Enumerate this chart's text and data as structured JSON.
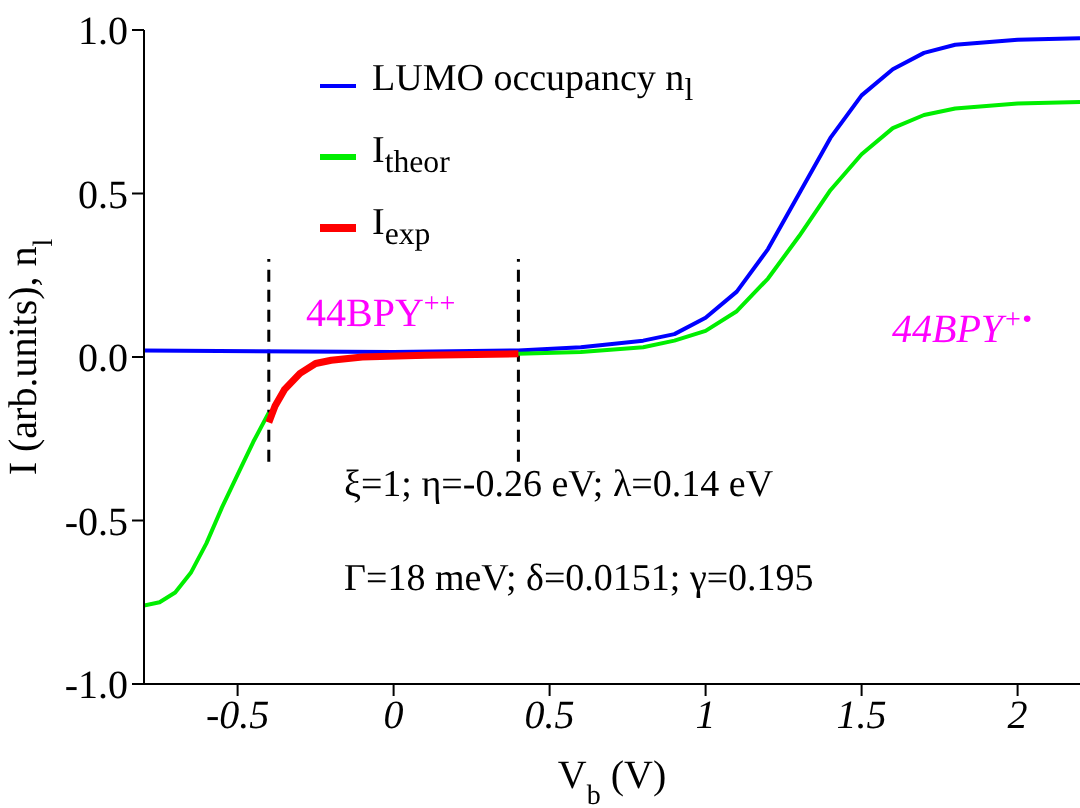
{
  "chart_data": {
    "type": "line",
    "xlabel": "V$_{b}$ (V)",
    "ylabel": "I (arb.units), n$_{l}$",
    "xlim": [
      -0.8,
      2.2
    ],
    "xticks": [
      -0.5,
      0,
      0.5,
      1,
      1.5,
      2
    ],
    "ylim": [
      -1.0,
      1.0
    ],
    "yticks": [
      {
        "value": -1.0,
        "label": "-1.0"
      },
      {
        "value": -0.5,
        "label": "-0.5"
      },
      {
        "value": 0,
        "label": "0.0"
      },
      {
        "value": 0.5,
        "label": "0.5"
      },
      {
        "value": 1.0,
        "label": "1.0"
      }
    ],
    "grid": false,
    "legend": "top left",
    "marker": "none",
    "series": [
      {
        "name": "LUMO occupancy n$_{l}$",
        "color": "#0000ff",
        "x": [
          -0.8,
          0,
          0.4,
          0.6,
          0.8,
          0.9,
          1.0,
          1.1,
          1.2,
          1.3,
          1.4,
          1.5,
          1.6,
          1.7,
          1.8,
          2.0,
          2.2
        ],
        "values": [
          0.02,
          0.015,
          0.02,
          0.03,
          0.05,
          0.07,
          0.12,
          0.2,
          0.33,
          0.5,
          0.67,
          0.8,
          0.88,
          0.93,
          0.955,
          0.97,
          0.975
        ]
      },
      {
        "name": "I$_{theor}$",
        "color": "#00ee00",
        "x": [
          -0.8,
          -0.75,
          -0.7,
          -0.65,
          -0.6,
          -0.55,
          -0.5,
          -0.45,
          -0.4,
          -0.35,
          -0.3,
          -0.2,
          0,
          0.4,
          0.6,
          0.8,
          0.9,
          1.0,
          1.1,
          1.2,
          1.3,
          1.4,
          1.5,
          1.6,
          1.7,
          1.8,
          2.0,
          2.2
        ],
        "values": [
          -0.76,
          -0.75,
          -0.72,
          -0.66,
          -0.57,
          -0.46,
          -0.36,
          -0.26,
          -0.17,
          null,
          null,
          null,
          0,
          0.01,
          0.015,
          0.03,
          0.05,
          0.08,
          0.14,
          0.24,
          0.37,
          0.51,
          0.62,
          0.7,
          0.74,
          0.76,
          0.775,
          0.78
        ]
      },
      {
        "name": "I$_{exp}$",
        "color": "#ff0000",
        "x": [
          -0.4,
          -0.38,
          -0.35,
          -0.32,
          -0.3,
          -0.25,
          -0.2,
          -0.1,
          0.1,
          0.4
        ],
        "values": [
          -0.2,
          -0.15,
          -0.1,
          -0.07,
          -0.05,
          -0.02,
          -0.01,
          0,
          0.005,
          0.01
        ]
      }
    ],
    "ref_lines": [
      {
        "axis": "x",
        "value": -0.4,
        "line_style": "dashed",
        "color": "#000000"
      },
      {
        "axis": "x",
        "value": 0.4,
        "line_style": "dashed",
        "color": "#000000"
      }
    ],
    "annotations": [
      "44BPY$^{++}$",
      "44BPY$^{+•}$",
      "ξ=1; η=-0.26 eV; λ=0.14 eV",
      "Γ=18 meV; δ=0.0151; γ=0.195"
    ]
  }
}
